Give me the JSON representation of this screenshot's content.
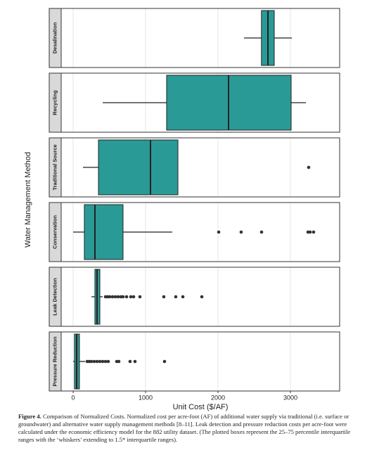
{
  "chart_data": {
    "type": "box",
    "x_label": "Unit Cost ($/AF)",
    "y_label": "Water Management Method",
    "categories": [
      "Desalination",
      "Recycling",
      "Traditional Source",
      "Conservation",
      "Leak Detection",
      "Pressure Reduction"
    ],
    "boxes": [
      {
        "whislo": 2360,
        "q1": 2600,
        "med": 2690,
        "q3": 2777,
        "whishi": 3020,
        "fliers": []
      },
      {
        "whislo": 408,
        "q1": 1291,
        "med": 2146,
        "q3": 3010,
        "whishi": 3214,
        "fliers": []
      },
      {
        "whislo": 136,
        "q1": 350,
        "med": 1068,
        "q3": 1447,
        "whishi": 1447,
        "fliers": [
          3252
        ]
      },
      {
        "whislo": 0,
        "q1": 155,
        "med": 301,
        "q3": 689,
        "whishi": 1369,
        "fliers": [
          2010,
          2320,
          2602,
          3243,
          3272,
          3320
        ]
      },
      {
        "whislo": 252,
        "q1": 301,
        "med": 330,
        "q3": 369,
        "whishi": 408,
        "fliers": [
          447,
          476,
          505,
          544,
          583,
          621,
          660,
          689,
          738,
          796,
          835,
          922,
          1252,
          1417,
          1515,
          1777
        ]
      },
      {
        "whislo": 0,
        "q1": 19,
        "med": 49,
        "q3": 87,
        "whishi": 165,
        "fliers": [
          194,
          223,
          252,
          291,
          330,
          369,
          408,
          447,
          485,
          602,
          631,
          786,
          854,
          1262
        ]
      }
    ],
    "color": "#2a9a96",
    "xlim": [
      -165,
      3680
    ],
    "xticks": [
      0,
      1000,
      2000,
      3000
    ],
    "grid": true
  },
  "caption_label": "Figure 4.",
  "caption_text": "Comparison of Normalized Costs. Normalized cost per acre-foot (AF) of additional water supply via traditional (i.e. surface or groundwater) and alternative water supply management methods [8–11]. Leak detection and pressure reduction costs per acre-foot were calculated under the economic efficiency model for the 882 utility dataset. (The plotted boxes represent the 25–75 percentile interquartile ranges with the ‘whiskers’ extending to 1.5* interquartile ranges)."
}
